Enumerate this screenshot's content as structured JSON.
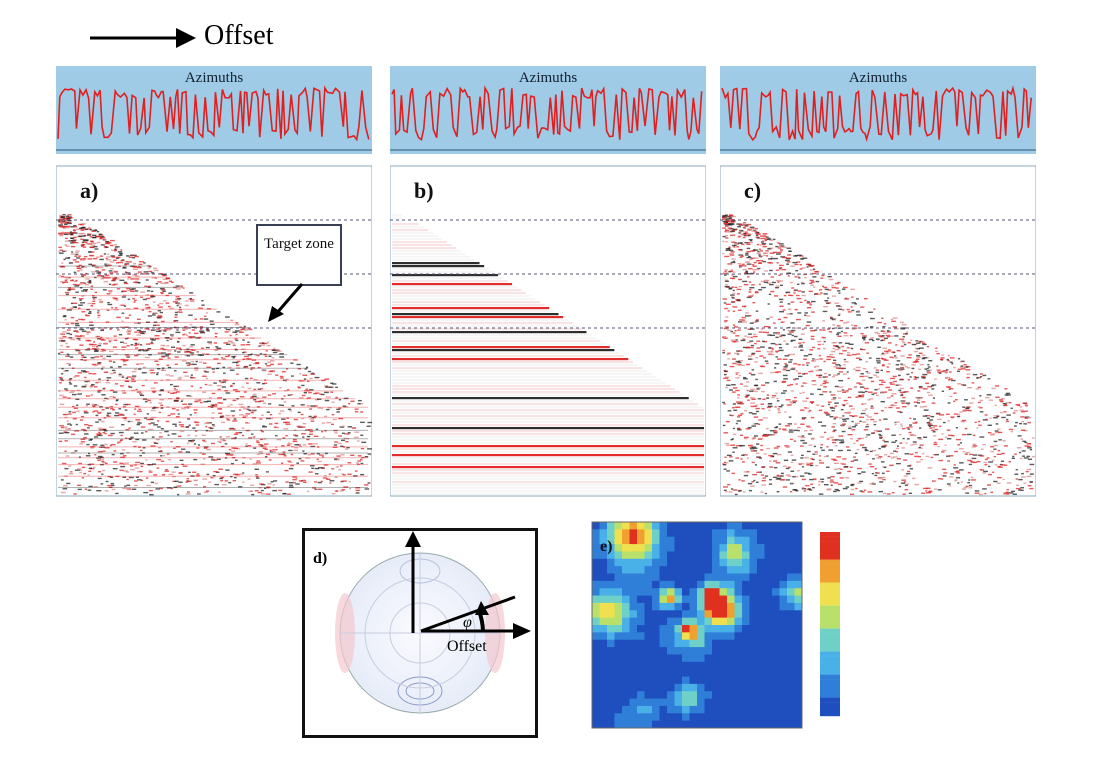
{
  "header": {
    "offset_label": "Offset"
  },
  "panels": [
    {
      "letter": "a)",
      "azimuth_title": "Azimuths",
      "annotation": "Target zone"
    },
    {
      "letter": "b)",
      "azimuth_title": "Azimuths"
    },
    {
      "letter": "c)",
      "azimuth_title": "Azimuths"
    }
  ],
  "polar": {
    "letter": "d)",
    "angle_symbol": "φ",
    "offset_label": "Offset"
  },
  "heatmap": {
    "letter": "e)"
  },
  "colors": {
    "azimuth_bg": "#9fcbe6",
    "trace_red": "#e02020",
    "trace_black": "#111111"
  }
}
